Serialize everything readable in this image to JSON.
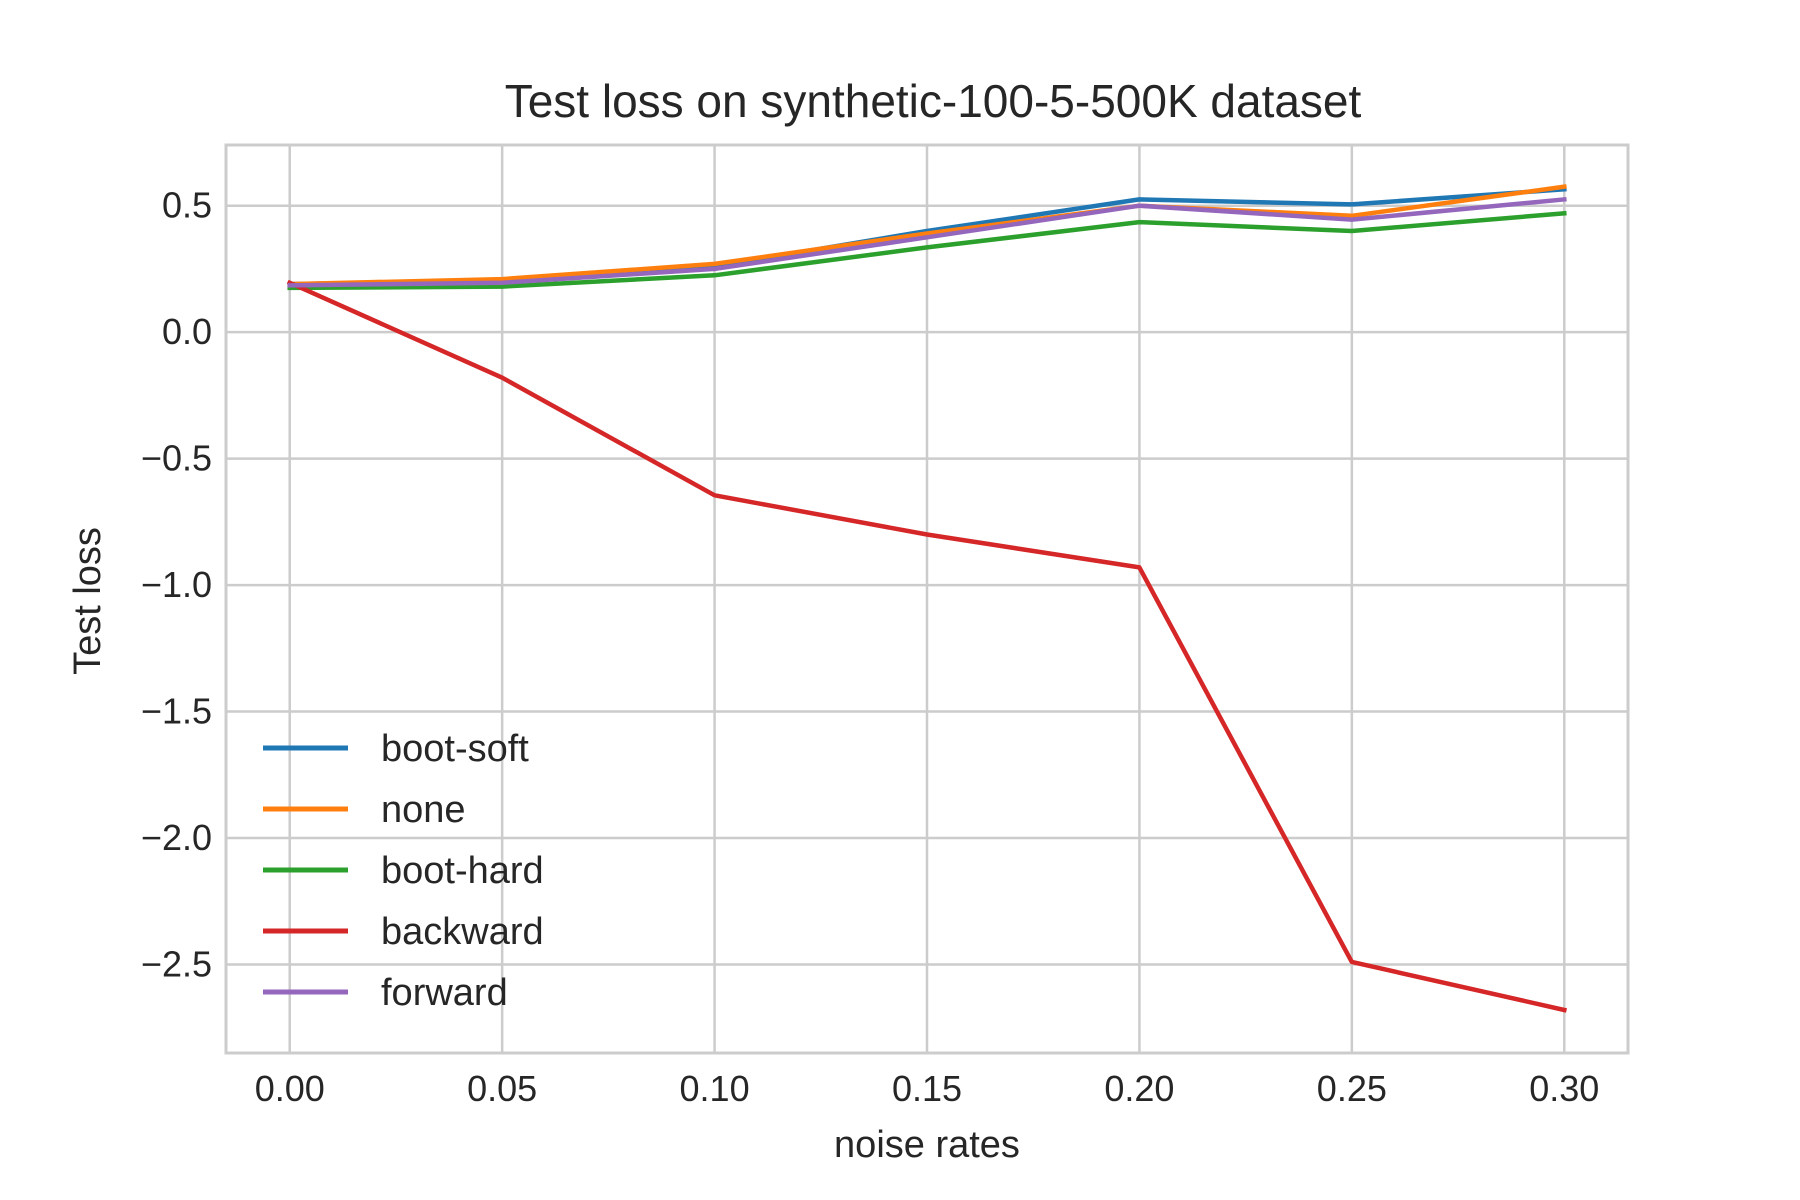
{
  "chart_data": {
    "type": "line",
    "title": "Test loss on synthetic-100-5-500K dataset",
    "xlabel": "noise rates",
    "ylabel": "Test loss",
    "x": [
      0.0,
      0.05,
      0.1,
      0.15,
      0.2,
      0.25,
      0.3
    ],
    "x_tick_labels": [
      "0.00",
      "0.05",
      "0.10",
      "0.15",
      "0.20",
      "0.25",
      "0.30"
    ],
    "y_ticks": [
      0.5,
      0.0,
      -0.5,
      -1.0,
      -1.5,
      -2.0,
      -2.5
    ],
    "y_tick_labels": [
      "0.5",
      "0.0",
      "−0.5",
      "−1.0",
      "−1.5",
      "−2.0",
      "−2.5"
    ],
    "xlim": [
      -0.015,
      0.315
    ],
    "ylim": [
      -2.85,
      0.74
    ],
    "grid": true,
    "legend_position": "lower-left",
    "series": [
      {
        "name": "boot-soft",
        "color": "#1f77b4",
        "values": [
          0.19,
          0.205,
          0.26,
          0.4,
          0.525,
          0.505,
          0.565
        ]
      },
      {
        "name": "none",
        "color": "#ff7f0e",
        "values": [
          0.19,
          0.21,
          0.27,
          0.39,
          0.5,
          0.46,
          0.575
        ]
      },
      {
        "name": "boot-hard",
        "color": "#2ca02c",
        "values": [
          0.175,
          0.18,
          0.225,
          0.335,
          0.435,
          0.4,
          0.47
        ]
      },
      {
        "name": "backward",
        "color": "#d62728",
        "values": [
          0.195,
          -0.18,
          -0.645,
          -0.8,
          -0.93,
          -2.49,
          -2.68
        ]
      },
      {
        "name": "forward",
        "color": "#9467bd",
        "values": [
          0.185,
          0.195,
          0.25,
          0.375,
          0.5,
          0.445,
          0.525
        ]
      }
    ]
  }
}
